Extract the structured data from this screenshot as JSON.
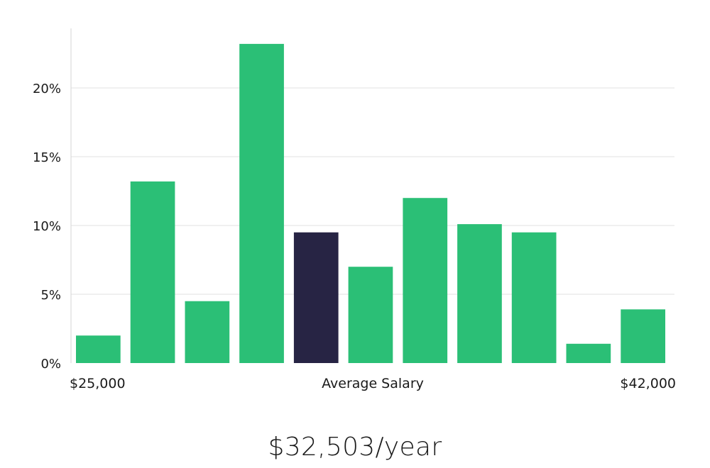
{
  "chart_data": {
    "type": "bar",
    "values": [
      2.0,
      13.2,
      4.5,
      23.2,
      9.5,
      7.0,
      12.0,
      10.1,
      9.5,
      1.4,
      3.9
    ],
    "highlight_index": 4,
    "ylim": [
      0,
      25
    ],
    "yticks": [
      0,
      5,
      10,
      15,
      20
    ],
    "ytick_labels": [
      "0%",
      "5%",
      "10%",
      "15%",
      "20%"
    ],
    "x_left_label": "$25,000",
    "xlabel": "Average Salary",
    "x_right_label": "$42,000",
    "grid": true,
    "colors": {
      "bar": "#2bbf76",
      "highlight": "#272444",
      "grid": "#e2e2e2",
      "axis": "#d6d6d6"
    }
  },
  "summary": {
    "salary": "$32,503/year"
  }
}
